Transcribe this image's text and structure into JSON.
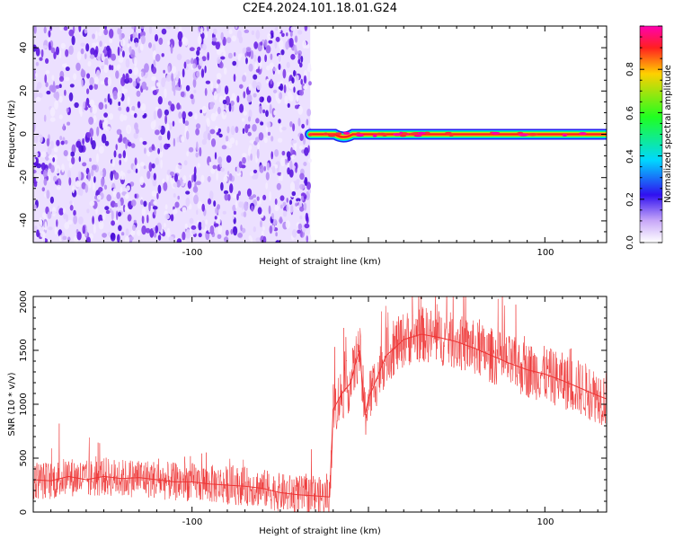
{
  "figure": {
    "title": "C2E4.2024.101.18.01.G24"
  },
  "chart_data": [
    {
      "type": "heatmap",
      "xlabel": "Height of straight line (km)",
      "ylabel": "Frequency (Hz)",
      "xlim": [
        -190,
        135
      ],
      "ylim": [
        -50,
        50
      ],
      "xticks": [
        -100,
        100
      ],
      "xtick_labels": [
        "-100",
        "100"
      ],
      "yticks": [
        -40,
        -20,
        0,
        20,
        40
      ],
      "ytick_labels": [
        "-40",
        "-20",
        "0",
        "20",
        "40"
      ],
      "noise_region_x": [
        -190,
        -33
      ],
      "signal_line": {
        "x_start": -33,
        "x_end": 135,
        "frequency": 0,
        "dip_x": -14,
        "dip_frequency": -2.5
      },
      "colorbar": {
        "label": "Normalized spectral amplitude",
        "range": [
          0,
          1
        ],
        "ticks": [
          0.0,
          0.2,
          0.4,
          0.6,
          0.8
        ],
        "tick_labels": [
          "0.0",
          "0.2",
          "0.4",
          "0.6",
          "0.8"
        ]
      },
      "grid": false
    },
    {
      "type": "line",
      "xlabel": "Height of straight line (km)",
      "ylabel": "SNR (10 * v/v)",
      "xlim": [
        -190,
        135
      ],
      "ylim": [
        0,
        2000
      ],
      "xticks": [
        -100,
        100
      ],
      "xtick_labels": [
        "-100",
        "100"
      ],
      "yticks": [
        0,
        500,
        1000,
        1500,
        2000
      ],
      "ytick_labels": [
        "0",
        "500",
        "1000",
        "1500",
        "2000"
      ],
      "series": [
        {
          "color": "#ee3333",
          "x": [
            -190,
            -180,
            -170,
            -160,
            -150,
            -140,
            -130,
            -120,
            -110,
            -100,
            -90,
            -80,
            -70,
            -60,
            -50,
            -40,
            -30,
            -22,
            -20,
            -15,
            -10,
            -7,
            -5,
            -2,
            0,
            5,
            10,
            20,
            30,
            40,
            50,
            60,
            70,
            80,
            90,
            100,
            110,
            120,
            130,
            135
          ],
          "values": [
            300,
            290,
            330,
            300,
            330,
            310,
            320,
            300,
            280,
            280,
            260,
            250,
            240,
            220,
            180,
            160,
            150,
            140,
            950,
            1100,
            1200,
            1400,
            1500,
            900,
            1050,
            1250,
            1450,
            1600,
            1650,
            1620,
            1580,
            1520,
            1450,
            1380,
            1320,
            1280,
            1220,
            1150,
            1080,
            1050
          ]
        }
      ],
      "grid": false
    }
  ]
}
